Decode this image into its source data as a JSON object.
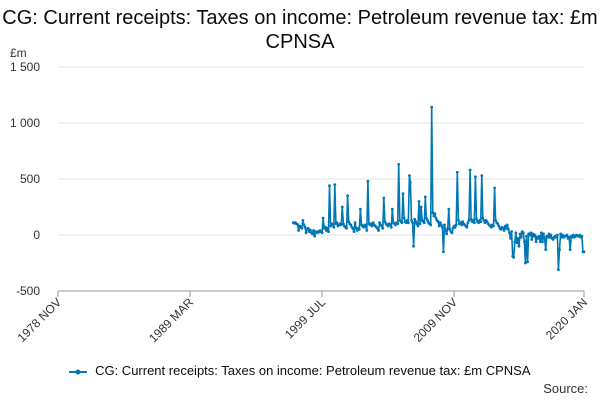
{
  "chart_data": {
    "type": "line",
    "title": "CG: Current receipts: Taxes on income: Petroleum revenue tax: £m CPNSA",
    "y_unit_label": "£m",
    "ylim": [
      -500,
      1500
    ],
    "y_ticks": [
      {
        "value": -500,
        "label": "-500"
      },
      {
        "value": 0,
        "label": "0"
      },
      {
        "value": 500,
        "label": "500"
      },
      {
        "value": 1000,
        "label": "1 000"
      },
      {
        "value": 1500,
        "label": "1 500"
      }
    ],
    "xlim": [
      "1978-11",
      "2020-01"
    ],
    "x_ticks": [
      {
        "value": "1978-11",
        "label": "1978 NOV"
      },
      {
        "value": "1989-03",
        "label": "1989 MAR"
      },
      {
        "value": "1999-07",
        "label": "1999 JUL"
      },
      {
        "value": "2009-11",
        "label": "2009 NOV"
      },
      {
        "value": "2020-01",
        "label": "2020 JAN"
      }
    ],
    "grid": true,
    "legend_position": "bottom",
    "series": [
      {
        "name": "CG: Current receipts: Taxes on income: Petroleum revenue tax: £m CPNSA",
        "color": "#0077b6",
        "points": [
          [
            "1997-04",
            110
          ],
          [
            "1997-05",
            105
          ],
          [
            "1997-06",
            112
          ],
          [
            "1997-07",
            100
          ],
          [
            "1997-08",
            95
          ],
          [
            "1997-09",
            40
          ],
          [
            "1997-10",
            80
          ],
          [
            "1997-11",
            70
          ],
          [
            "1997-12",
            60
          ],
          [
            "1998-01",
            130
          ],
          [
            "1998-02",
            90
          ],
          [
            "1998-03",
            70
          ],
          [
            "1998-04",
            20
          ],
          [
            "1998-05",
            50
          ],
          [
            "1998-06",
            60
          ],
          [
            "1998-07",
            30
          ],
          [
            "1998-08",
            45
          ],
          [
            "1998-09",
            20
          ],
          [
            "1998-10",
            10
          ],
          [
            "1998-11",
            40
          ],
          [
            "1998-12",
            -10
          ],
          [
            "1999-01",
            30
          ],
          [
            "1999-02",
            20
          ],
          [
            "1999-03",
            30
          ],
          [
            "1999-04",
            25
          ],
          [
            "1999-05",
            40
          ],
          [
            "1999-06",
            30
          ],
          [
            "1999-07",
            20
          ],
          [
            "1999-08",
            150
          ],
          [
            "1999-09",
            60
          ],
          [
            "1999-10",
            70
          ],
          [
            "1999-11",
            40
          ],
          [
            "1999-12",
            60
          ],
          [
            "2000-01",
            30
          ],
          [
            "2000-02",
            440
          ],
          [
            "2000-03",
            80
          ],
          [
            "2000-04",
            100
          ],
          [
            "2000-05",
            90
          ],
          [
            "2000-06",
            70
          ],
          [
            "2000-07",
            450
          ],
          [
            "2000-08",
            100
          ],
          [
            "2000-09",
            110
          ],
          [
            "2000-10",
            80
          ],
          [
            "2000-11",
            90
          ],
          [
            "2000-12",
            100
          ],
          [
            "2001-01",
            90
          ],
          [
            "2001-02",
            250
          ],
          [
            "2001-03",
            100
          ],
          [
            "2001-04",
            80
          ],
          [
            "2001-05",
            70
          ],
          [
            "2001-06",
            60
          ],
          [
            "2001-07",
            350
          ],
          [
            "2001-08",
            120
          ],
          [
            "2001-09",
            100
          ],
          [
            "2001-10",
            90
          ],
          [
            "2001-11",
            70
          ],
          [
            "2001-12",
            60
          ],
          [
            "2002-01",
            30
          ],
          [
            "2002-02",
            110
          ],
          [
            "2002-03",
            60
          ],
          [
            "2002-04",
            40
          ],
          [
            "2002-05",
            60
          ],
          [
            "2002-06",
            50
          ],
          [
            "2002-07",
            230
          ],
          [
            "2002-08",
            90
          ],
          [
            "2002-09",
            80
          ],
          [
            "2002-10",
            70
          ],
          [
            "2002-11",
            90
          ],
          [
            "2002-12",
            80
          ],
          [
            "2003-01",
            40
          ],
          [
            "2003-02",
            480
          ],
          [
            "2003-03",
            100
          ],
          [
            "2003-04",
            90
          ],
          [
            "2003-05",
            100
          ],
          [
            "2003-06",
            80
          ],
          [
            "2003-07",
            110
          ],
          [
            "2003-08",
            90
          ],
          [
            "2003-09",
            80
          ],
          [
            "2003-10",
            70
          ],
          [
            "2003-11",
            60
          ],
          [
            "2003-12",
            40
          ],
          [
            "2004-01",
            110
          ],
          [
            "2004-02",
            90
          ],
          [
            "2004-03",
            80
          ],
          [
            "2004-04",
            60
          ],
          [
            "2004-05",
            330
          ],
          [
            "2004-06",
            120
          ],
          [
            "2004-07",
            100
          ],
          [
            "2004-08",
            90
          ],
          [
            "2004-09",
            80
          ],
          [
            "2004-10",
            100
          ],
          [
            "2004-11",
            90
          ],
          [
            "2004-12",
            70
          ],
          [
            "2005-01",
            230
          ],
          [
            "2005-02",
            110
          ],
          [
            "2005-03",
            100
          ],
          [
            "2005-04",
            90
          ],
          [
            "2005-05",
            110
          ],
          [
            "2005-06",
            100
          ],
          [
            "2005-07",
            630
          ],
          [
            "2005-08",
            130
          ],
          [
            "2005-09",
            120
          ],
          [
            "2005-10",
            110
          ],
          [
            "2005-11",
            370
          ],
          [
            "2005-12",
            150
          ],
          [
            "2006-01",
            120
          ],
          [
            "2006-02",
            110
          ],
          [
            "2006-03",
            130
          ],
          [
            "2006-04",
            110
          ],
          [
            "2006-05",
            530
          ],
          [
            "2006-06",
            470
          ],
          [
            "2006-07",
            130
          ],
          [
            "2006-08",
            110
          ],
          [
            "2006-09",
            -100
          ],
          [
            "2006-10",
            140
          ],
          [
            "2006-11",
            120
          ],
          [
            "2006-12",
            100
          ],
          [
            "2007-01",
            80
          ],
          [
            "2007-02",
            300
          ],
          [
            "2007-03",
            100
          ],
          [
            "2007-04",
            250
          ],
          [
            "2007-05",
            130
          ],
          [
            "2007-06",
            120
          ],
          [
            "2007-07",
            110
          ],
          [
            "2007-08",
            340
          ],
          [
            "2007-09",
            150
          ],
          [
            "2007-10",
            130
          ],
          [
            "2007-11",
            110
          ],
          [
            "2007-12",
            100
          ],
          [
            "2008-01",
            90
          ],
          [
            "2008-02",
            1140
          ],
          [
            "2008-03",
            200
          ],
          [
            "2008-04",
            170
          ],
          [
            "2008-05",
            190
          ],
          [
            "2008-06",
            150
          ],
          [
            "2008-07",
            130
          ],
          [
            "2008-08",
            120
          ],
          [
            "2008-09",
            80
          ],
          [
            "2008-10",
            110
          ],
          [
            "2008-11",
            90
          ],
          [
            "2008-12",
            70
          ],
          [
            "2009-01",
            -150
          ],
          [
            "2009-02",
            90
          ],
          [
            "2009-03",
            40
          ],
          [
            "2009-04",
            10
          ],
          [
            "2009-05",
            60
          ],
          [
            "2009-06",
            230
          ],
          [
            "2009-07",
            50
          ],
          [
            "2009-08",
            30
          ],
          [
            "2009-09",
            20
          ],
          [
            "2009-10",
            60
          ],
          [
            "2009-11",
            80
          ],
          [
            "2009-12",
            70
          ],
          [
            "2010-01",
            90
          ],
          [
            "2010-02",
            560
          ],
          [
            "2010-03",
            130
          ],
          [
            "2010-04",
            100
          ],
          [
            "2010-05",
            110
          ],
          [
            "2010-06",
            90
          ],
          [
            "2010-07",
            120
          ],
          [
            "2010-08",
            100
          ],
          [
            "2010-09",
            90
          ],
          [
            "2010-10",
            80
          ],
          [
            "2010-11",
            70
          ],
          [
            "2010-12",
            110
          ],
          [
            "2011-01",
            130
          ],
          [
            "2011-02",
            580
          ],
          [
            "2011-03",
            140
          ],
          [
            "2011-04",
            120
          ],
          [
            "2011-05",
            130
          ],
          [
            "2011-06",
            110
          ],
          [
            "2011-07",
            520
          ],
          [
            "2011-08",
            140
          ],
          [
            "2011-09",
            120
          ],
          [
            "2011-10",
            110
          ],
          [
            "2011-11",
            130
          ],
          [
            "2011-12",
            120
          ],
          [
            "2012-01",
            530
          ],
          [
            "2012-02",
            150
          ],
          [
            "2012-03",
            130
          ],
          [
            "2012-04",
            110
          ],
          [
            "2012-05",
            130
          ],
          [
            "2012-06",
            120
          ],
          [
            "2012-07",
            100
          ],
          [
            "2012-08",
            90
          ],
          [
            "2012-09",
            80
          ],
          [
            "2012-10",
            70
          ],
          [
            "2012-11",
            90
          ],
          [
            "2012-12",
            80
          ],
          [
            "2013-01",
            420
          ],
          [
            "2013-02",
            130
          ],
          [
            "2013-03",
            110
          ],
          [
            "2013-04",
            100
          ],
          [
            "2013-05",
            80
          ],
          [
            "2013-06",
            60
          ],
          [
            "2013-07",
            50
          ],
          [
            "2013-08",
            70
          ],
          [
            "2013-09",
            60
          ],
          [
            "2013-10",
            40
          ],
          [
            "2013-11",
            80
          ],
          [
            "2013-12",
            60
          ],
          [
            "2014-01",
            90
          ],
          [
            "2014-02",
            50
          ],
          [
            "2014-03",
            20
          ],
          [
            "2014-04",
            -30
          ],
          [
            "2014-05",
            30
          ],
          [
            "2014-06",
            -190
          ],
          [
            "2014-07",
            -200
          ],
          [
            "2014-08",
            -60
          ],
          [
            "2014-09",
            20
          ],
          [
            "2014-10",
            -70
          ],
          [
            "2014-11",
            -30
          ],
          [
            "2014-12",
            -100
          ],
          [
            "2015-01",
            10
          ],
          [
            "2015-02",
            -20
          ],
          [
            "2015-03",
            30
          ],
          [
            "2015-04",
            20
          ],
          [
            "2015-05",
            -60
          ],
          [
            "2015-06",
            -250
          ],
          [
            "2015-07",
            -10
          ],
          [
            "2015-08",
            -240
          ],
          [
            "2015-09",
            10
          ],
          [
            "2015-10",
            0
          ],
          [
            "2015-11",
            20
          ],
          [
            "2015-12",
            -40
          ],
          [
            "2016-01",
            10
          ],
          [
            "2016-02",
            -10
          ],
          [
            "2016-03",
            0
          ],
          [
            "2016-04",
            -60
          ],
          [
            "2016-05",
            -20
          ],
          [
            "2016-06",
            -30
          ],
          [
            "2016-07",
            -10
          ],
          [
            "2016-08",
            -60
          ],
          [
            "2016-09",
            20
          ],
          [
            "2016-10",
            -60
          ],
          [
            "2016-11",
            10
          ],
          [
            "2016-12",
            -30
          ],
          [
            "2017-01",
            -130
          ],
          [
            "2017-02",
            -10
          ],
          [
            "2017-03",
            -20
          ],
          [
            "2017-04",
            10
          ],
          [
            "2017-05",
            -20
          ],
          [
            "2017-06",
            0
          ],
          [
            "2017-07",
            -30
          ],
          [
            "2017-08",
            -40
          ],
          [
            "2017-09",
            -20
          ],
          [
            "2017-10",
            -10
          ],
          [
            "2017-11",
            -20
          ],
          [
            "2017-12",
            0
          ],
          [
            "2018-01",
            -310
          ],
          [
            "2018-02",
            -130
          ],
          [
            "2018-03",
            10
          ],
          [
            "2018-04",
            -20
          ],
          [
            "2018-05",
            0
          ],
          [
            "2018-06",
            -20
          ],
          [
            "2018-07",
            -10
          ],
          [
            "2018-08",
            -10
          ],
          [
            "2018-09",
            0
          ],
          [
            "2018-10",
            -30
          ],
          [
            "2018-11",
            -20
          ],
          [
            "2018-12",
            -130
          ],
          [
            "2019-01",
            -10
          ],
          [
            "2019-02",
            -20
          ],
          [
            "2019-03",
            0
          ],
          [
            "2019-04",
            -20
          ],
          [
            "2019-05",
            -10
          ],
          [
            "2019-06",
            0
          ],
          [
            "2019-07",
            -10
          ],
          [
            "2019-08",
            -10
          ],
          [
            "2019-09",
            0
          ],
          [
            "2019-10",
            -20
          ],
          [
            "2019-11",
            -10
          ],
          [
            "2019-12",
            -150
          ],
          [
            "2020-01",
            -150
          ]
        ]
      }
    ]
  },
  "footer": {
    "source_label": "Source:"
  }
}
